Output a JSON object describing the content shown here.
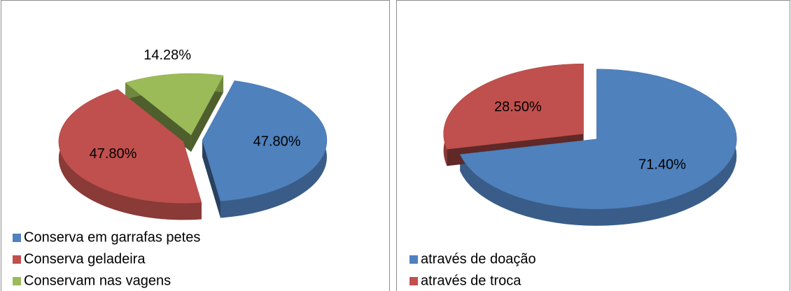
{
  "chart_data": [
    {
      "type": "pie",
      "categories": [
        "Conserva em garrafas petes",
        "Conserva geladeira",
        "Conservam nas vagens"
      ],
      "values": [
        47.8,
        47.8,
        14.28
      ],
      "value_labels": [
        "47.80%",
        "47.80%",
        "14.28%"
      ],
      "colors": [
        "#4f81bd",
        "#c0504d",
        "#9bbb59"
      ],
      "legend": "bottom"
    },
    {
      "type": "pie",
      "categories": [
        "através de doação",
        "através de troca"
      ],
      "values": [
        71.4,
        28.5
      ],
      "value_labels": [
        "71.40%",
        "28.50%"
      ],
      "colors": [
        "#4f81bd",
        "#c0504d"
      ],
      "legend": "bottom"
    }
  ]
}
